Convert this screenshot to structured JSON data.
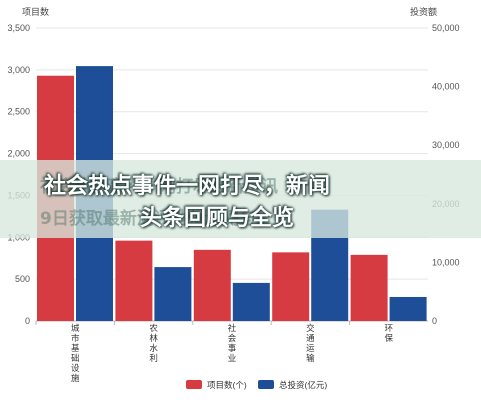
{
  "chart_data": {
    "type": "bar",
    "categories": [
      "城市基础设施",
      "农林水利",
      "社会事业",
      "交通运输",
      "环保"
    ],
    "series": [
      {
        "name": "项目数(个)",
        "values": [
          2930,
          960,
          850,
          820,
          790
        ],
        "axis": "left",
        "color": "#d63b41"
      },
      {
        "name": "总投资(亿元)",
        "values": [
          43500,
          9200,
          6500,
          19000,
          4100
        ],
        "axis": "right",
        "color": "#1f4e99"
      }
    ],
    "y_left": {
      "label": "项目数",
      "range": [
        0,
        3500
      ],
      "ticks": [
        "0",
        "500",
        "1,000",
        "1,500",
        "2,000",
        "2,500",
        "3,000",
        "3,500"
      ]
    },
    "y_right": {
      "label": "投资额",
      "range": [
        0,
        50000
      ],
      "ticks": [
        "0",
        "10,000",
        "20,000",
        "30,000",
        "40,000",
        "50,000"
      ]
    },
    "grid": true,
    "legend": "bottom-center"
  },
  "overlay": {
    "headline_line1": "社会热点事件一网打尽，新闻",
    "headline_line2": "头条回顾与全览",
    "ghost_line1": "社会热点事件一网打尽最新资讯",
    "ghost_line2": "9日获取最新测评地位评测与"
  }
}
